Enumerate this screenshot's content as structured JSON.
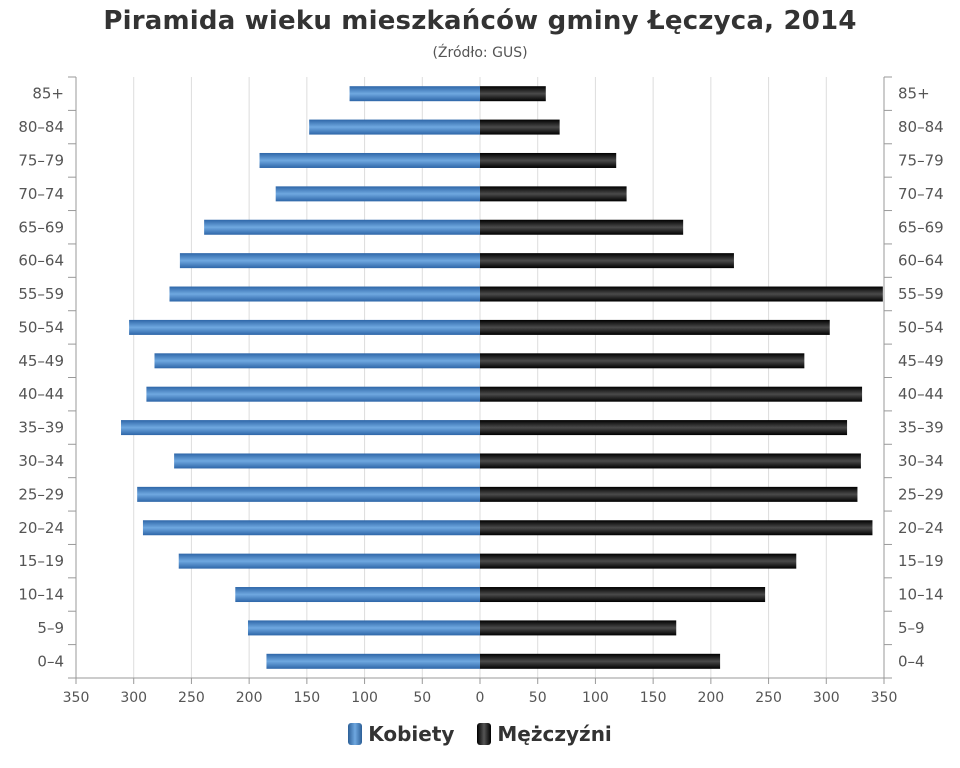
{
  "chart_data": {
    "type": "bar",
    "orientation": "horizontal",
    "layout": "population-pyramid",
    "title": "Piramida wieku mieszkańców gminy Łęczyca, 2014",
    "subtitle": "(Źródło: GUS)",
    "categories": [
      "85+",
      "80–84",
      "75–79",
      "70–74",
      "65–69",
      "60–64",
      "55–59",
      "50–54",
      "45–49",
      "40–44",
      "35–39",
      "30–34",
      "25–29",
      "20–24",
      "15–19",
      "10–14",
      "5–9",
      "0–4"
    ],
    "x_ticks": [
      "350",
      "300",
      "250",
      "200",
      "150",
      "100",
      "50",
      "0",
      "50",
      "100",
      "150",
      "200",
      "250",
      "300",
      "350"
    ],
    "xlim": [
      -350,
      350
    ],
    "series": [
      {
        "name": "Kobiety",
        "side": "left",
        "color": "#3b78c0",
        "values": [
          113,
          148,
          191,
          177,
          239,
          260,
          269,
          304,
          282,
          289,
          311,
          265,
          297,
          292,
          261,
          212,
          201,
          185
        ]
      },
      {
        "name": "Mężczyźni",
        "side": "right",
        "color": "#111111",
        "values": [
          57,
          69,
          118,
          127,
          176,
          220,
          349,
          303,
          281,
          331,
          318,
          330,
          327,
          340,
          274,
          247,
          170,
          208
        ]
      }
    ],
    "grid": true,
    "legend_position": "bottom"
  }
}
